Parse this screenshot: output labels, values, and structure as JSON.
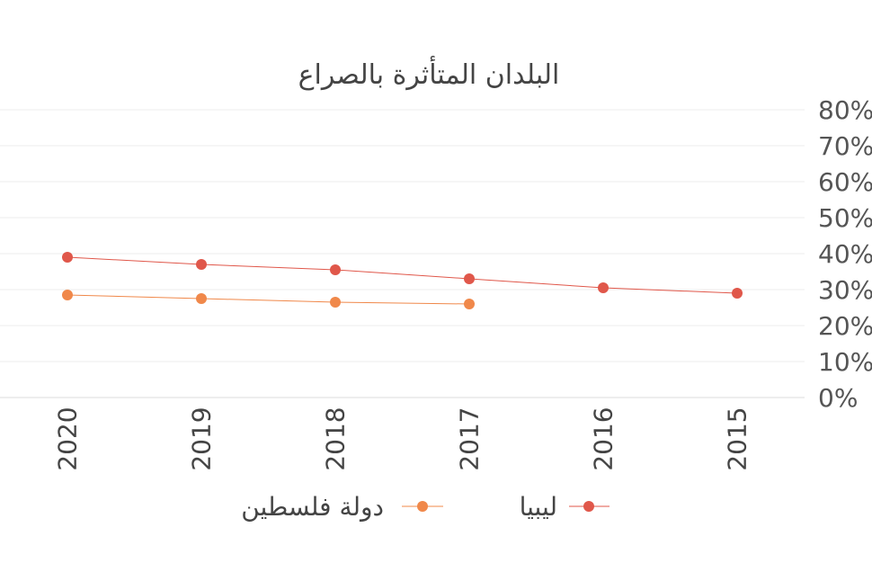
{
  "chart_data": {
    "type": "line",
    "title": "البلدان المتأثرة بالصراع",
    "categories": [
      "2020",
      "2019",
      "2018",
      "2017",
      "2016",
      "2015"
    ],
    "y_tick_labels": [
      "0%",
      "10%",
      "20%",
      "30%",
      "40%",
      "50%",
      "60%",
      "70%",
      "80%"
    ],
    "ylim": [
      0,
      80
    ],
    "y_axis_side": "right",
    "x_axis_reversed": true,
    "grid": true,
    "legend_position": "bottom",
    "series": [
      {
        "name": "ليبيا",
        "color": "#e0574a",
        "values": [
          39,
          37,
          35.5,
          33,
          30.5,
          29
        ]
      },
      {
        "name": "دولة فلسطين",
        "color": "#f0884a",
        "values": [
          28.5,
          27.5,
          26.5,
          26,
          null,
          null
        ]
      }
    ]
  }
}
